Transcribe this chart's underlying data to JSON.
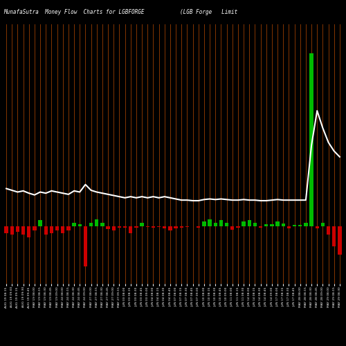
{
  "title_left": "MunafaSutra  Money Flow  Charts for LGBFORGE",
  "title_right": "(LGB Forge   Limit",
  "background_color": "#000000",
  "bar_color_pos": "#00bb00",
  "bar_color_neg": "#cc0000",
  "line_color": "#ffffff",
  "orange_line_color": "#aa4400",
  "categories": [
    "AUG 19 08:15",
    "AUG 19 09:00",
    "AUG 19 09:15",
    "AUG 19 09:30",
    "AUG 19 09:45",
    "MAY 19 08:00",
    "MAY 19 08:15",
    "MAY 19 08:30",
    "MAY 19 08:45",
    "MAY 19 09:00",
    "MAY 24 08:00",
    "MAY 24 08:15",
    "MAY 24 08:30",
    "MAY 24 08:45",
    "MAY 24 09:00",
    "MAY 27 08:00",
    "MAY 27 08:15",
    "MAY 27 08:30",
    "MAY 27 08:45",
    "MAY 27 09:00",
    "MAY 27 09:15",
    "JUN 03 08:00",
    "JUN 03 08:15",
    "JUN 03 08:30",
    "JUN 03 08:45",
    "JUN 03 09:00",
    "JUN 04 08:00",
    "JUN 04 08:15",
    "JUN 04 08:30",
    "JUN 04 08:45",
    "JUN 07 08:00",
    "JUN 07 08:15",
    "JUN 07 08:30",
    "JUN 07 08:45",
    "JUN 07 09:00",
    "JUN 10 08:00",
    "JUN 10 08:15",
    "JUN 10 08:30",
    "JUN 10 08:45",
    "JUN 10 09:00",
    "JUN 11 08:00",
    "JUN 11 08:15",
    "JUN 11 08:30",
    "JUN 14 08:00",
    "JUN 14 08:15",
    "JUN 14 08:30",
    "JUN 14 08:45",
    "JUN 14 09:00",
    "JUN 17 08:00",
    "JUN 17 08:15",
    "JUN 17 08:30",
    "JUN 17 08:45",
    "MAY 28 08:00",
    "MAY 28 08:15",
    "MAY 28 08:30",
    "MAY 28 08:45",
    "MAY 28 09:00",
    "MAY 29 08:00",
    "MAY 29 08:15",
    "MAY 29 08:30"
  ],
  "bar_values": [
    -1.2,
    -1.5,
    -1.0,
    -1.5,
    -2.0,
    -0.8,
    1.0,
    -1.5,
    -1.2,
    -0.8,
    -1.2,
    -0.8,
    0.6,
    0.3,
    -7.0,
    0.6,
    1.2,
    0.6,
    -0.5,
    -0.8,
    -0.3,
    -0.3,
    -1.2,
    -0.3,
    0.6,
    -0.2,
    -0.3,
    -0.2,
    -0.4,
    -0.8,
    -0.4,
    -0.3,
    -0.2,
    -0.1,
    -0.3,
    0.8,
    1.2,
    0.6,
    1.0,
    0.5,
    -0.6,
    -0.3,
    0.8,
    1.0,
    0.5,
    -0.3,
    0.3,
    0.3,
    0.8,
    0.4,
    -0.4,
    0.2,
    0.2,
    0.5,
    30.0,
    -0.4,
    0.5,
    -1.5,
    -3.5,
    -5.0
  ],
  "line_values": [
    6.5,
    6.2,
    5.9,
    6.1,
    5.7,
    5.4,
    5.9,
    5.7,
    6.1,
    5.9,
    5.7,
    5.5,
    6.1,
    5.9,
    7.2,
    6.2,
    5.9,
    5.7,
    5.5,
    5.3,
    5.1,
    4.9,
    5.1,
    4.9,
    5.1,
    4.9,
    5.1,
    4.9,
    5.1,
    4.9,
    4.7,
    4.5,
    4.5,
    4.4,
    4.4,
    4.6,
    4.7,
    4.6,
    4.7,
    4.6,
    4.5,
    4.5,
    4.6,
    4.5,
    4.5,
    4.4,
    4.4,
    4.5,
    4.6,
    4.5,
    4.5,
    4.5,
    4.5,
    4.5,
    14.0,
    20.0,
    17.0,
    14.5,
    13.0,
    12.0
  ],
  "ylim": [
    -10,
    35
  ],
  "figsize": [
    5.0,
    5.0
  ],
  "dpi": 100
}
